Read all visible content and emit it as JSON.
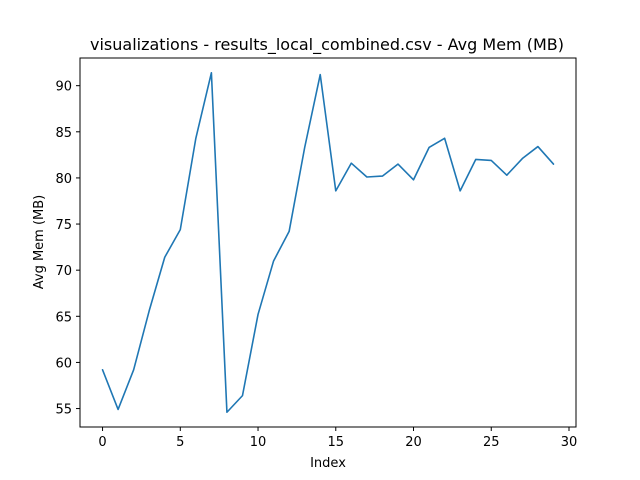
{
  "chart_data": {
    "type": "line",
    "title": "visualizations - results_local_combined.csv - Avg Mem (MB)",
    "xlabel": "Index",
    "ylabel": "Avg Mem (MB)",
    "xlim": [
      -1.45,
      30.45
    ],
    "ylim": [
      53.0,
      93.0
    ],
    "xticks": [
      0,
      5,
      10,
      15,
      20,
      25,
      30
    ],
    "yticks": [
      55,
      60,
      65,
      70,
      75,
      80,
      85,
      90
    ],
    "grid": false,
    "legend": "none",
    "series": [
      {
        "color": "#1f77b4",
        "x": [
          0,
          1,
          2,
          3,
          4,
          5,
          6,
          7,
          8,
          9,
          10,
          11,
          12,
          13,
          14,
          15,
          16,
          17,
          18,
          19,
          20,
          21,
          22,
          23,
          24,
          25,
          26,
          27,
          28,
          29
        ],
        "y": [
          59.2,
          54.9,
          59.2,
          65.6,
          71.4,
          74.4,
          84.3,
          91.4,
          54.6,
          56.4,
          65.2,
          71.0,
          74.2,
          83.3,
          91.2,
          78.6,
          81.6,
          80.1,
          80.2,
          81.5,
          79.8,
          83.3,
          84.3,
          78.6,
          82.0,
          81.9,
          80.3,
          82.1,
          83.4,
          81.5
        ]
      }
    ]
  }
}
